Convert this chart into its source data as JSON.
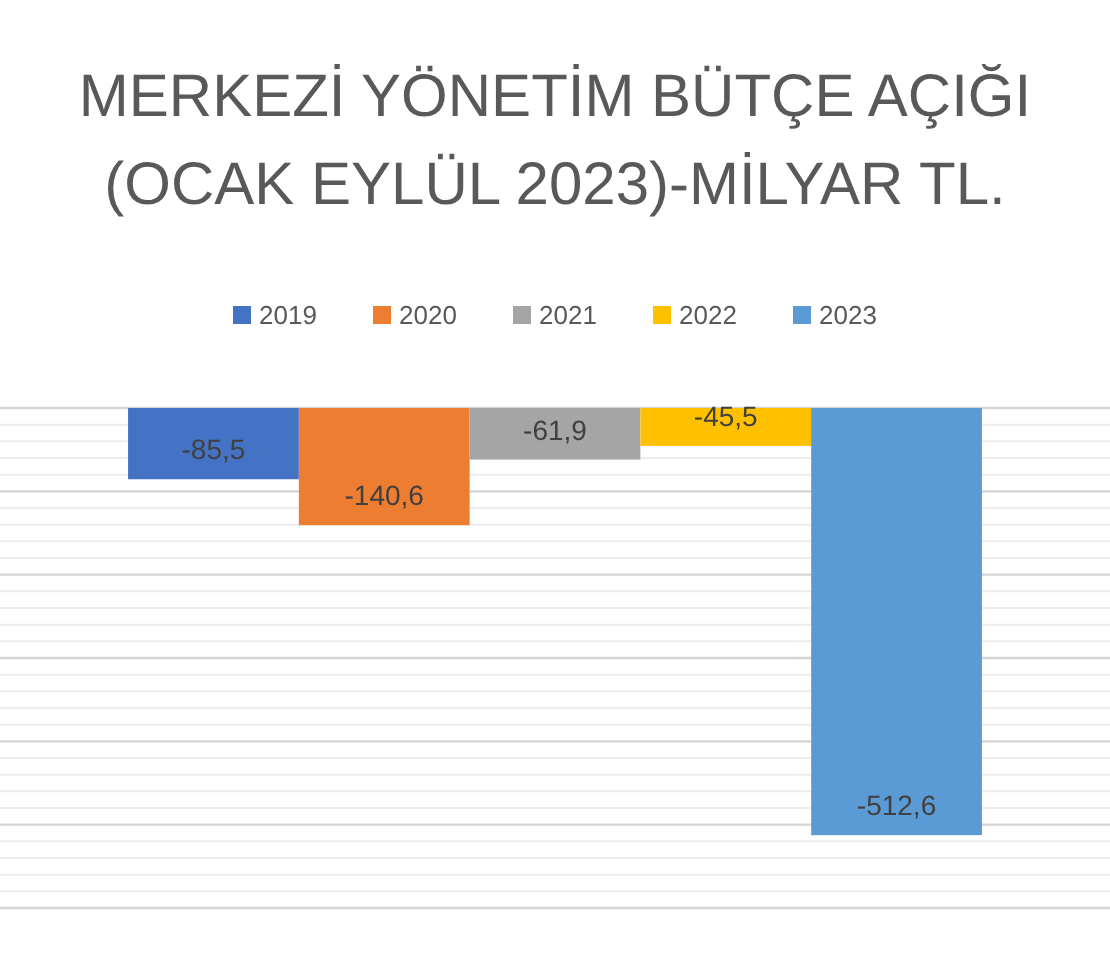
{
  "chart_data": {
    "type": "bar",
    "title": "MERKEZİ YÖNETİM BÜTÇE AÇIĞI (OCAK EYLÜL 2023)-MİLYAR TL.",
    "categories": [
      null
    ],
    "series": [
      {
        "name": "2019",
        "color": "#4472c4",
        "values": [
          -85.5
        ],
        "value_labels": [
          "-85,5"
        ]
      },
      {
        "name": "2020",
        "color": "#ed7d31",
        "values": [
          -140.6
        ],
        "value_labels": [
          "-140,6"
        ]
      },
      {
        "name": "2021",
        "color": "#a5a5a5",
        "values": [
          -61.9
        ],
        "value_labels": [
          "-61,9"
        ]
      },
      {
        "name": "2022",
        "color": "#ffc000",
        "values": [
          -45.5
        ],
        "value_labels": [
          "-45,5"
        ]
      },
      {
        "name": "2023",
        "color": "#5b9bd5",
        "values": [
          -512.6
        ],
        "value_labels": [
          "-512,6"
        ]
      }
    ],
    "ylim": [
      -600,
      0
    ],
    "yticks": [
      {
        "value": -600,
        "label": null
      },
      {
        "value": -500,
        "label": null
      },
      {
        "value": -400,
        "label": null
      },
      {
        "value": -300,
        "label": null
      },
      {
        "value": -200,
        "label": null
      },
      {
        "value": -100,
        "label": null
      },
      {
        "value": 0,
        "label": null
      }
    ],
    "grid": "y",
    "legend": "top"
  }
}
